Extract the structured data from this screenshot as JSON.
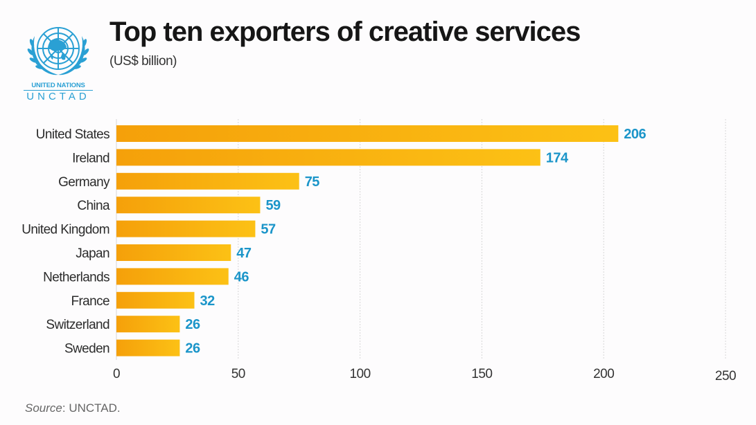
{
  "header": {
    "title": "Top ten exporters of creative services",
    "subtitle": "(US$ billion)"
  },
  "logo": {
    "icon": "un-emblem-icon",
    "line1": "UNITED NATIONS",
    "line2": "UNCTAD"
  },
  "footer": {
    "source_label": "Source",
    "source_value": ": UNCTAD."
  },
  "colors": {
    "bar_start": "#f5a00a",
    "bar_end": "#fcc115",
    "value_label": "#1b95c9",
    "logo_blue": "#2aa0d4"
  },
  "chart_data": {
    "type": "bar",
    "orientation": "horizontal",
    "title": "Top ten exporters of creative services",
    "subtitle": "(US$ billion)",
    "xlabel": "",
    "ylabel": "",
    "categories": [
      "United States",
      "Ireland",
      "Germany",
      "China",
      "United Kingdom",
      "Japan",
      "Netherlands",
      "France",
      "Switzerland",
      "Sweden"
    ],
    "values": [
      206,
      174,
      75,
      59,
      57,
      47,
      46,
      32,
      26,
      26
    ],
    "xlim": [
      0,
      250
    ],
    "xticks": [
      0,
      50,
      100,
      150,
      200,
      250
    ],
    "grid": true,
    "data_labels": true,
    "legend": "none",
    "source": "Source: UNCTAD."
  }
}
